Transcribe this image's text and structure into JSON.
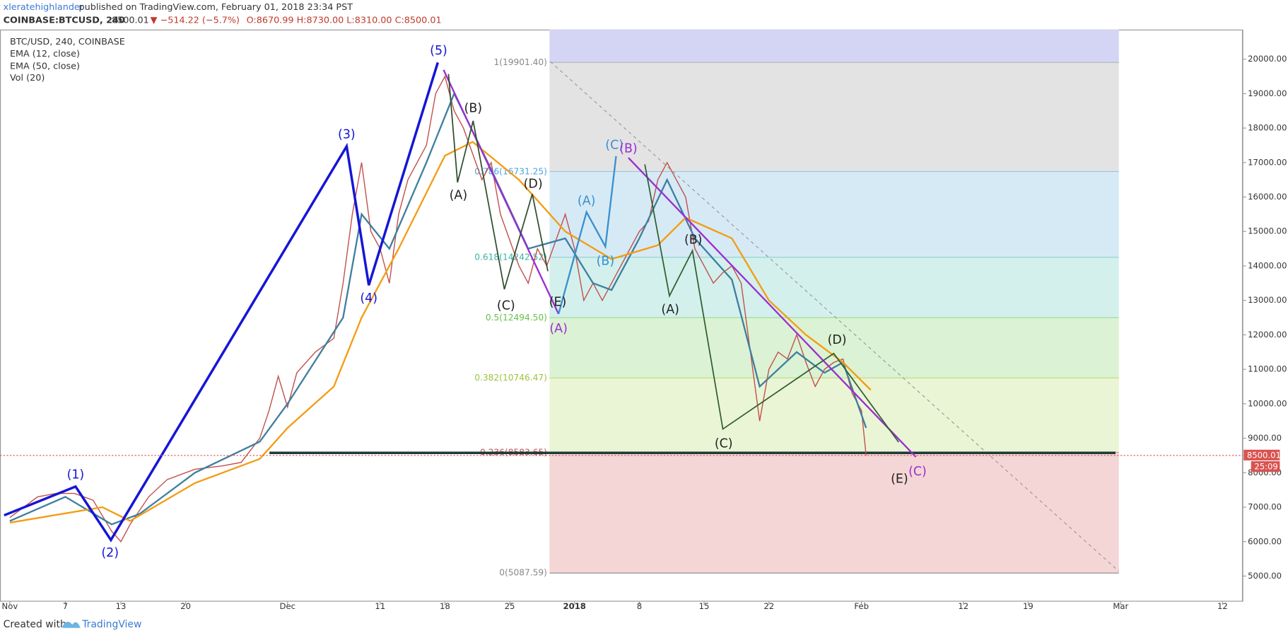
{
  "header": {
    "author": "xleratehighlander",
    "published": "published on TradingView.com, February 01, 2018 23:34 PST",
    "symbol": "COINBASE:BTCUSD, 240",
    "price": "8500.01",
    "change": "▼ −514.22 (−5.7%)",
    "ohlc": "O:8670.99 H:8730.00 L:8310.00 C:8500.01"
  },
  "footer": {
    "created": "Created with",
    "brand": "TradingView"
  },
  "chart_data": {
    "type": "line",
    "legend": [
      "BTC/USD, 240, COINBASE",
      "Vol (20)"
    ],
    "xlim": [
      -1.06,
      133.19
    ],
    "xticks": [
      {
        "value": 0,
        "label": "Nov"
      },
      {
        "value": 6,
        "label": "7"
      },
      {
        "value": 12,
        "label": "13"
      },
      {
        "value": 19,
        "label": "20"
      },
      {
        "value": 30,
        "label": "Dec"
      },
      {
        "value": 40,
        "label": "11"
      },
      {
        "value": 47,
        "label": "18"
      },
      {
        "value": 54,
        "label": "25"
      },
      {
        "value": 61,
        "label": "2018"
      },
      {
        "value": 68,
        "label": "8"
      },
      {
        "value": 75,
        "label": "15"
      },
      {
        "value": 82,
        "label": "22"
      },
      {
        "value": 92,
        "label": "Feb"
      },
      {
        "value": 103,
        "label": "12"
      },
      {
        "value": 110,
        "label": "19"
      },
      {
        "value": 120,
        "label": "Mar"
      },
      {
        "value": 131,
        "label": "12"
      }
    ],
    "ylim": [
      4259,
      20858
    ],
    "yticks": [
      {
        "value": 5000,
        "label": "5000.00"
      },
      {
        "value": 6000,
        "label": "6000.00"
      },
      {
        "value": 7000,
        "label": "7000.00"
      },
      {
        "value": 8000,
        "label": "8000.00"
      },
      {
        "value": 9000,
        "label": "9000.00"
      },
      {
        "value": 10000,
        "label": "10000.00"
      },
      {
        "value": 11000,
        "label": "11000.00"
      },
      {
        "value": 12000,
        "label": "12000.00"
      },
      {
        "value": 13000,
        "label": "13000.00"
      },
      {
        "value": 14000,
        "label": "14000.00"
      },
      {
        "value": 15000,
        "label": "15000.00"
      },
      {
        "value": 16000,
        "label": "16000.00"
      },
      {
        "value": 17000,
        "label": "17000.00"
      },
      {
        "value": 18000,
        "label": "18000.00"
      },
      {
        "value": 19000,
        "label": "19000.00"
      },
      {
        "value": 20000,
        "label": "20000.00"
      }
    ],
    "series": [
      {
        "name": "BTC/USD, 240, COINBASE",
        "color": "#c0504d",
        "x": [
          0,
          3,
          5,
          7,
          9,
          11,
          12,
          13,
          15,
          17,
          20,
          23,
          25,
          27,
          28,
          29,
          30,
          31,
          33,
          35,
          36,
          37,
          38,
          39,
          40,
          41,
          42,
          43,
          44,
          45,
          46,
          47,
          48,
          49,
          51,
          52,
          53,
          55,
          56,
          57,
          58,
          60,
          61,
          62,
          63,
          64,
          65,
          67,
          68,
          69,
          70,
          71,
          72,
          73,
          74,
          75,
          76,
          77,
          78,
          79,
          80,
          81,
          82,
          83,
          84,
          85,
          86,
          87,
          88,
          89,
          90,
          91,
          92,
          92.5
        ],
        "values": [
          6700,
          7300,
          7400,
          7400,
          7200,
          6300,
          6000,
          6500,
          7300,
          7800,
          8100,
          8200,
          8300,
          9000,
          9800,
          10800,
          9900,
          10900,
          11500,
          11900,
          13500,
          15500,
          17000,
          15000,
          14500,
          13500,
          15500,
          16500,
          17000,
          17500,
          19000,
          19500,
          18500,
          18000,
          16500,
          17000,
          15500,
          14000,
          13500,
          14500,
          14000,
          15500,
          14500,
          13000,
          13500,
          13000,
          13500,
          14500,
          15000,
          15300,
          16500,
          17000,
          16500,
          16000,
          14500,
          14000,
          13500,
          13800,
          14000,
          13500,
          11500,
          9500,
          11000,
          11500,
          11300,
          12000,
          11200,
          10500,
          11000,
          11200,
          11300,
          10300,
          9800,
          8500
        ]
      },
      {
        "name": "EMA (12, close)",
        "color": "#3f7f9f",
        "x": [
          0,
          6,
          11,
          14,
          20,
          27,
          30,
          36,
          38,
          41,
          45,
          48,
          52,
          56,
          60,
          63,
          65,
          68,
          71,
          74,
          78,
          81,
          85,
          88,
          90,
          92.5
        ],
        "values": [
          6600,
          7300,
          6500,
          6800,
          8000,
          8900,
          10000,
          12500,
          15500,
          14500,
          17000,
          19000,
          16800,
          14500,
          14800,
          13500,
          13300,
          14800,
          16500,
          14800,
          13600,
          10500,
          11500,
          10900,
          11200,
          9300
        ]
      },
      {
        "name": "EMA (50, close)",
        "color": "#f39c12",
        "x": [
          0,
          10,
          13,
          20,
          27,
          30,
          35,
          38,
          42,
          47,
          50,
          55,
          60,
          65,
          70,
          73,
          78,
          82,
          86,
          90,
          93
        ],
        "values": [
          6550,
          7000,
          6600,
          7700,
          8400,
          9300,
          10500,
          12500,
          14500,
          17200,
          17600,
          16500,
          15000,
          14200,
          14600,
          15400,
          14800,
          13000,
          12000,
          11200,
          10400
        ]
      }
    ],
    "fib": [
      {
        "label": "1(19901.40)",
        "value": 19901.4,
        "color": "#d4d4f5",
        "text_color": "#888888"
      },
      {
        "label": "0.786(16731.25)",
        "value": 16731.25,
        "color": "#e3e3e3",
        "text_color": "#4aa3df"
      },
      {
        "label": "0.618(14242.52)",
        "value": 14242.52,
        "color": "#d6eaf5",
        "text_color": "#3bb3a5"
      },
      {
        "label": "0.5(12494.50)",
        "value": 12494.5,
        "color": "#d3f0ec",
        "text_color": "#67c04a"
      },
      {
        "label": "0.382(10746.47)",
        "value": 10746.47,
        "color": "#dcf2d4",
        "text_color": "#9bc53d"
      },
      {
        "label": "0.236(8583.65)",
        "value": 8583.65,
        "color": "#eaf5d5",
        "text_color": "#c0504d"
      },
      {
        "label": "0(5087.59)",
        "value": 5087.59,
        "color": "#f5d6d6",
        "text_color": "#888888"
      }
    ],
    "last_price": {
      "value": 8500.01,
      "label": "8500.01"
    },
    "countdown": "25:09",
    "annotations": [
      "(1)",
      "(2)",
      "(3)",
      "(4)",
      "(5)",
      "(B)",
      "(A)",
      "(D)",
      "(C)",
      "(E)",
      "(A)",
      "(A)",
      "(B)",
      "(C)",
      "(B)",
      "(B)",
      "(A)",
      "(C)",
      "(D)",
      "(E)",
      "(C)"
    ]
  }
}
